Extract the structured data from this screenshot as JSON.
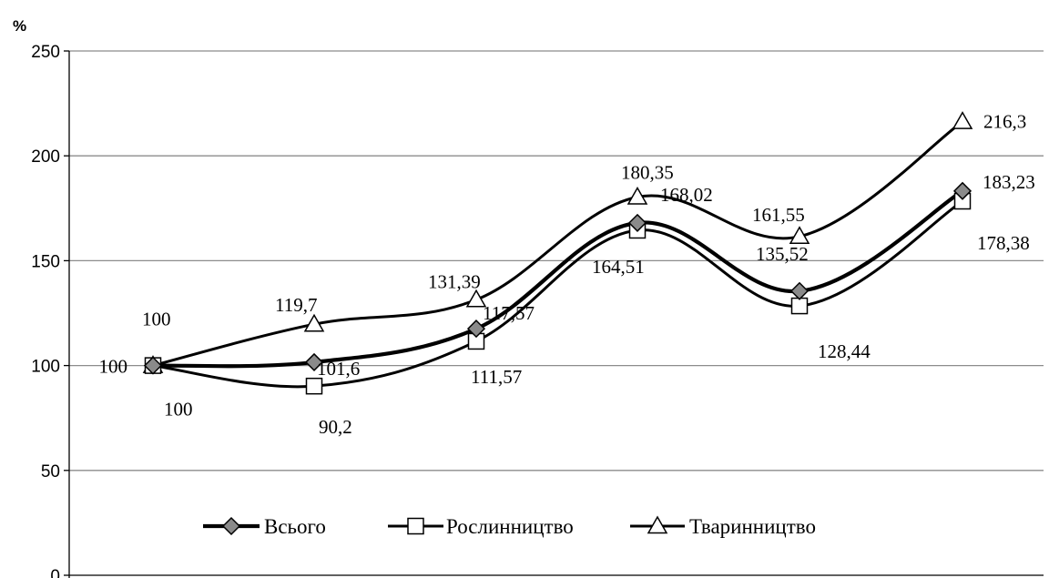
{
  "chart_data": {
    "type": "line",
    "ylabel": "%",
    "ylim": [
      0,
      250
    ],
    "yticks": [
      0,
      50,
      100,
      150,
      200,
      250
    ],
    "grid": true,
    "smooth": true,
    "legend_position": "bottom-center",
    "x": [
      1,
      2,
      3,
      4,
      5,
      6
    ],
    "series": [
      {
        "name": "Всього",
        "marker": "diamond",
        "values": [
          100,
          101.6,
          117.57,
          168.02,
          135.52,
          183.23
        ],
        "labels": [
          "100",
          "101,6",
          "117,57",
          "168,02",
          "135,52",
          "183,23"
        ]
      },
      {
        "name": "Рослинництво",
        "marker": "square",
        "values": [
          100,
          90.2,
          111.57,
          164.51,
          128.44,
          178.38
        ],
        "labels": [
          "100",
          "90,2",
          "111,57",
          "164,51",
          "128,44",
          "178,38"
        ]
      },
      {
        "name": "Тваринництво",
        "marker": "triangle",
        "values": [
          100,
          119.7,
          131.39,
          180.35,
          161.55,
          216.3
        ],
        "labels": [
          "100",
          "119,7",
          "131,39",
          "180,35",
          "161,55",
          "216,3"
        ]
      }
    ]
  },
  "colors": {
    "line": "#000000",
    "grid": "#8c8c8c",
    "marker_fill": "#ffffff",
    "diamond_fill": "#8a8a8a"
  }
}
